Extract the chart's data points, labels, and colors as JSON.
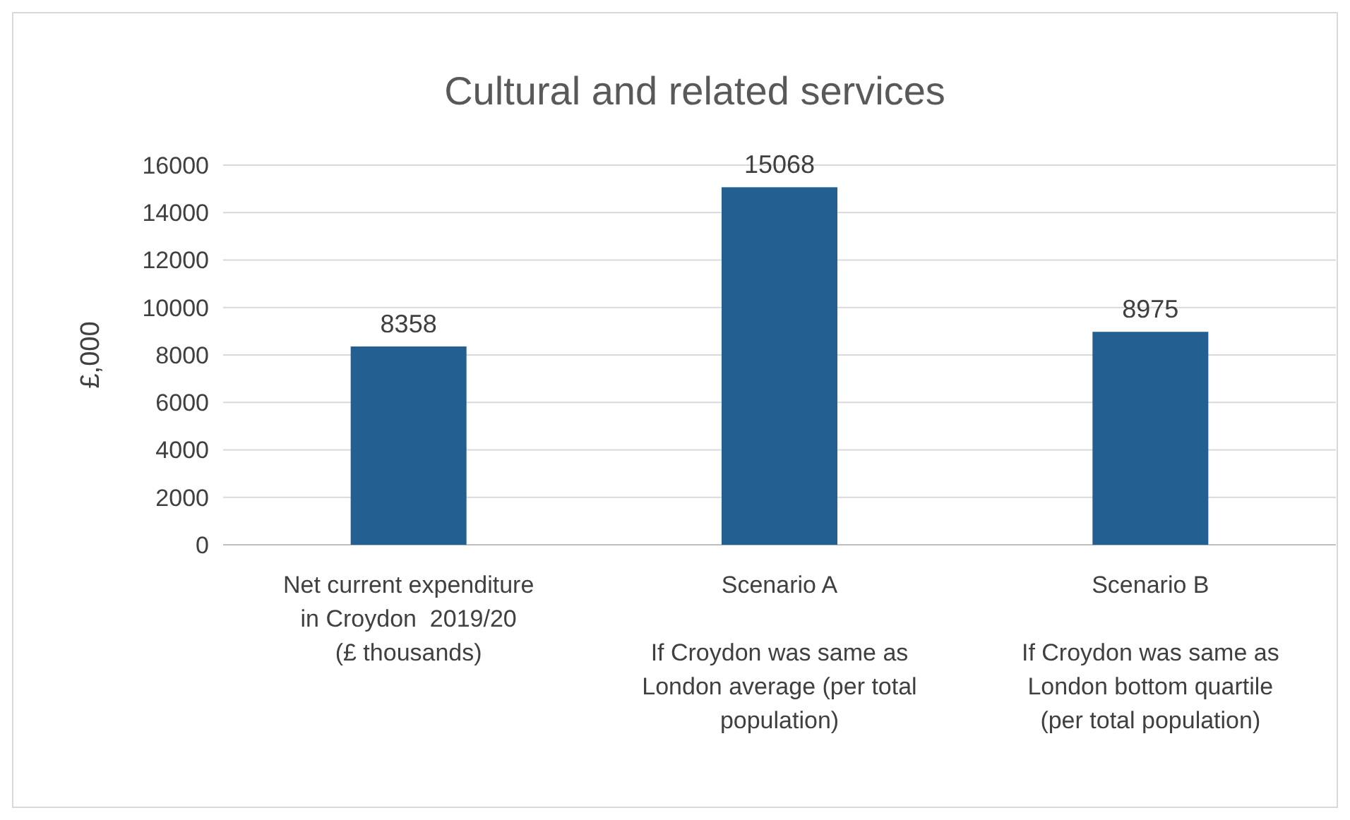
{
  "chart_data": {
    "type": "bar",
    "title": "Cultural and related services",
    "ylabel": "£,000",
    "categories": [
      "Net current expenditure\nin Croydon  2019/20\n(£ thousands)",
      "Scenario A",
      "Scenario B"
    ],
    "annotations": [
      "If Croydon was same as\nLondon average (per total\npopulation)",
      "If Croydon was same as\nLondon bottom quartile\n(per total population)"
    ],
    "values": [
      8358,
      15068,
      8975
    ],
    "color": "#245f91",
    "ylim": [
      0,
      16000
    ],
    "yticks": [
      0,
      2000,
      4000,
      6000,
      8000,
      10000,
      12000,
      14000,
      16000
    ],
    "grid": "y",
    "data_labels": true
  }
}
